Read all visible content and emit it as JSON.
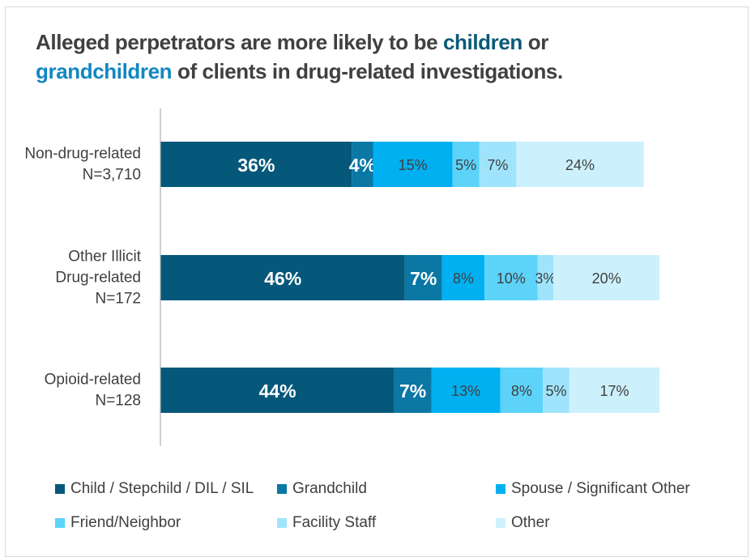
{
  "title": {
    "part1": "Alleged perpetrators are more likely to be ",
    "highlight1": "children",
    "part2": " or",
    "highlight2": "grandchildren",
    "part3": " of clients in drug-related investigations."
  },
  "chart_data": {
    "type": "bar",
    "orientation": "horizontal",
    "stacked": true,
    "title": "Alleged perpetrators are more likely to be children or grandchildren of clients in drug-related investigations.",
    "categories": [
      [
        "Non-drug-related",
        "N=3,710"
      ],
      [
        "Other Illicit",
        "Drug-related",
        "N=172"
      ],
      [
        "Opioid-related",
        "N=128"
      ]
    ],
    "series": [
      {
        "name": "Child / Stepchild / DIL / SIL",
        "color": "#06587a",
        "values": [
          36,
          46,
          44
        ],
        "labels": [
          "36%",
          "46%",
          "44%"
        ],
        "label_color": "#ffffff",
        "label_bold": true
      },
      {
        "name": "Grandchild",
        "color": "#0a77a5",
        "values": [
          4,
          7,
          7
        ],
        "labels": [
          "4%",
          "7%",
          "7%"
        ],
        "label_color": "#ffffff",
        "label_bold": true
      },
      {
        "name": "Spouse / Significant Other",
        "color": "#00b0f0",
        "values": [
          15,
          8,
          13
        ],
        "labels": [
          "15%",
          "8%",
          "13%"
        ],
        "label_color": "#404040",
        "label_bold": false
      },
      {
        "name": "Friend/Neighbor",
        "color": "#5dd3fa",
        "values": [
          5,
          10,
          8
        ],
        "labels": [
          "5%",
          "10%",
          "8%"
        ],
        "label_color": "#404040",
        "label_bold": false
      },
      {
        "name": "Facility Staff",
        "color": "#9fe4fc",
        "values": [
          7,
          3,
          5
        ],
        "labels": [
          "7%",
          "3%",
          "5%"
        ],
        "label_color": "#404040",
        "label_bold": false
      },
      {
        "name": "Other",
        "color": "#cdf0fd",
        "values": [
          24,
          20,
          17
        ],
        "labels": [
          "24%",
          "20%",
          "17%"
        ],
        "label_color": "#404040",
        "label_bold": false
      }
    ],
    "xlim": [
      0,
      100
    ],
    "grid": false,
    "legend_position": "bottom"
  },
  "legend": {
    "items": [
      {
        "label": "Child / Stepchild / DIL / SIL",
        "color": "#06587a"
      },
      {
        "label": "Grandchild",
        "color": "#0a77a5"
      },
      {
        "label": "Spouse / Significant Other",
        "color": "#00b0f0"
      },
      {
        "label": "Friend/Neighbor",
        "color": "#5dd3fa"
      },
      {
        "label": "Facility Staff",
        "color": "#9fe4fc"
      },
      {
        "label": "Other",
        "color": "#cdf0fd"
      }
    ]
  }
}
